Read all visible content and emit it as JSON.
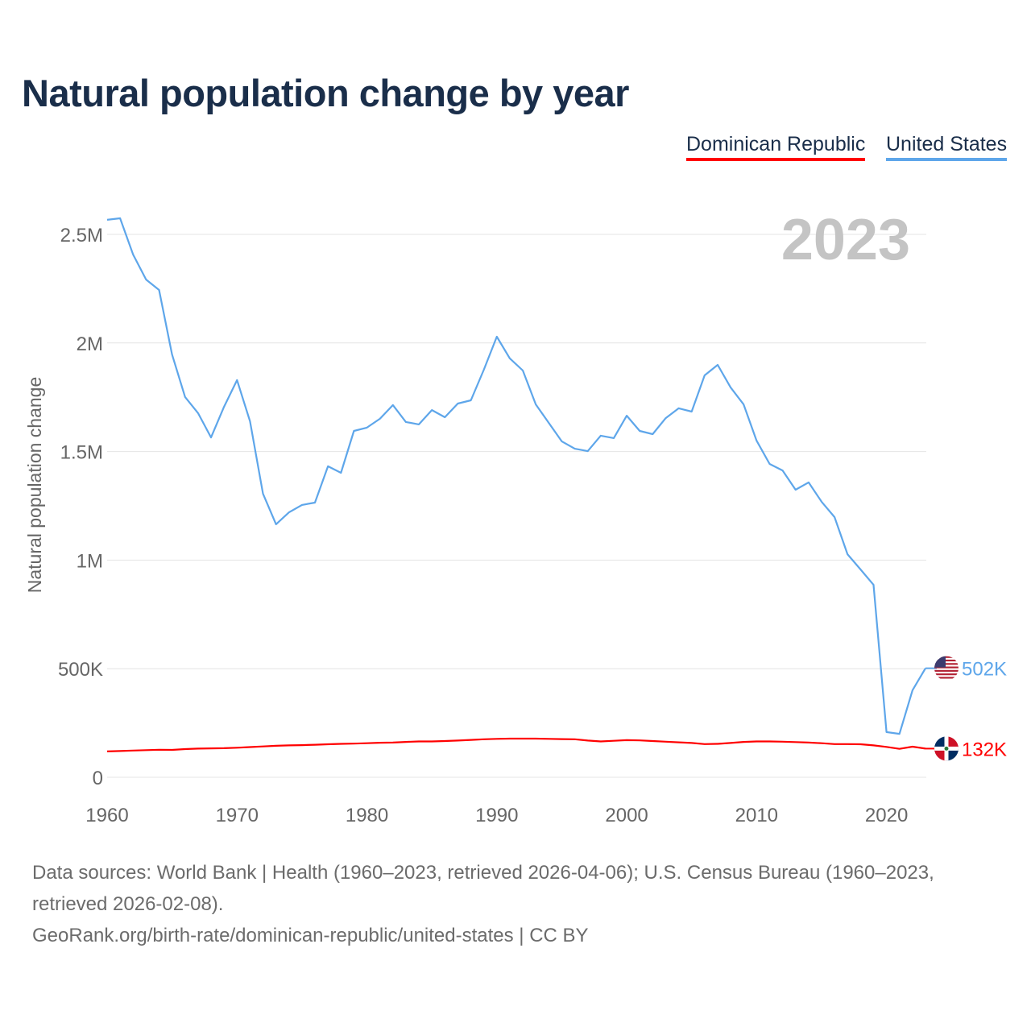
{
  "title": "Natural population change by year",
  "legend": [
    "Dominican Republic",
    "United States"
  ],
  "year_label": "2023",
  "sources": {
    "line1": "Data sources: World Bank | Health (1960–2023, retrieved 2026-04-06); U.S. Census Bureau (1960–2023,",
    "line2": "retrieved 2026-02-08).",
    "line3": "GeoRank.org/birth-rate/dominican-republic/united-states | CC BY"
  },
  "chart_data": {
    "type": "line",
    "title": "Natural population change by year",
    "xlabel": "",
    "ylabel": "Natural population change",
    "xlim": [
      1960,
      2023
    ],
    "ylim": [
      0,
      2700000
    ],
    "x_ticks": [
      1960,
      1970,
      1980,
      1990,
      2000,
      2010,
      2020
    ],
    "y_ticks": [
      0,
      500000,
      1000000,
      1500000,
      2000000,
      2500000
    ],
    "y_tick_labels": [
      "0",
      "500K",
      "1M",
      "1.5M",
      "2M",
      "2.5M"
    ],
    "grid": true,
    "legend_position": "top-right",
    "x_start": 1960,
    "series": [
      {
        "name": "Dominican Republic",
        "color": "#ff0000",
        "end_label": "132K",
        "values": [
          119000,
          121000,
          123000,
          125000,
          127000,
          126000,
          130000,
          132000,
          133000,
          134000,
          136000,
          139000,
          142000,
          145000,
          147000,
          148000,
          150000,
          152000,
          154000,
          155000,
          157000,
          159000,
          160000,
          163000,
          165000,
          165000,
          167000,
          169000,
          172000,
          175000,
          177000,
          178000,
          178000,
          178000,
          177000,
          176000,
          175000,
          169000,
          165000,
          168000,
          171000,
          170000,
          167000,
          164000,
          161000,
          158000,
          153000,
          154000,
          158000,
          163000,
          165000,
          165000,
          164000,
          162000,
          160000,
          157000,
          153000,
          153000,
          152000,
          147000,
          140000,
          131000,
          141000,
          132000
        ]
      },
      {
        "name": "United States",
        "color": "#5ea6ea",
        "end_label": "502K",
        "values": [
          2567000,
          2574000,
          2407000,
          2292000,
          2244000,
          1947000,
          1751000,
          1677000,
          1565000,
          1706000,
          1829000,
          1639000,
          1306000,
          1165000,
          1220000,
          1254000,
          1265000,
          1432000,
          1402000,
          1595000,
          1610000,
          1651000,
          1714000,
          1636000,
          1625000,
          1691000,
          1658000,
          1721000,
          1736000,
          1877000,
          2029000,
          1929000,
          1873000,
          1717000,
          1632000,
          1547000,
          1513000,
          1502000,
          1573000,
          1562000,
          1665000,
          1595000,
          1580000,
          1654000,
          1699000,
          1684000,
          1851000,
          1899000,
          1795000,
          1717000,
          1550000,
          1443000,
          1413000,
          1324000,
          1358000,
          1269000,
          1198000,
          1027000,
          957000,
          886000,
          208000,
          200000,
          401000,
          502000
        ]
      }
    ]
  }
}
